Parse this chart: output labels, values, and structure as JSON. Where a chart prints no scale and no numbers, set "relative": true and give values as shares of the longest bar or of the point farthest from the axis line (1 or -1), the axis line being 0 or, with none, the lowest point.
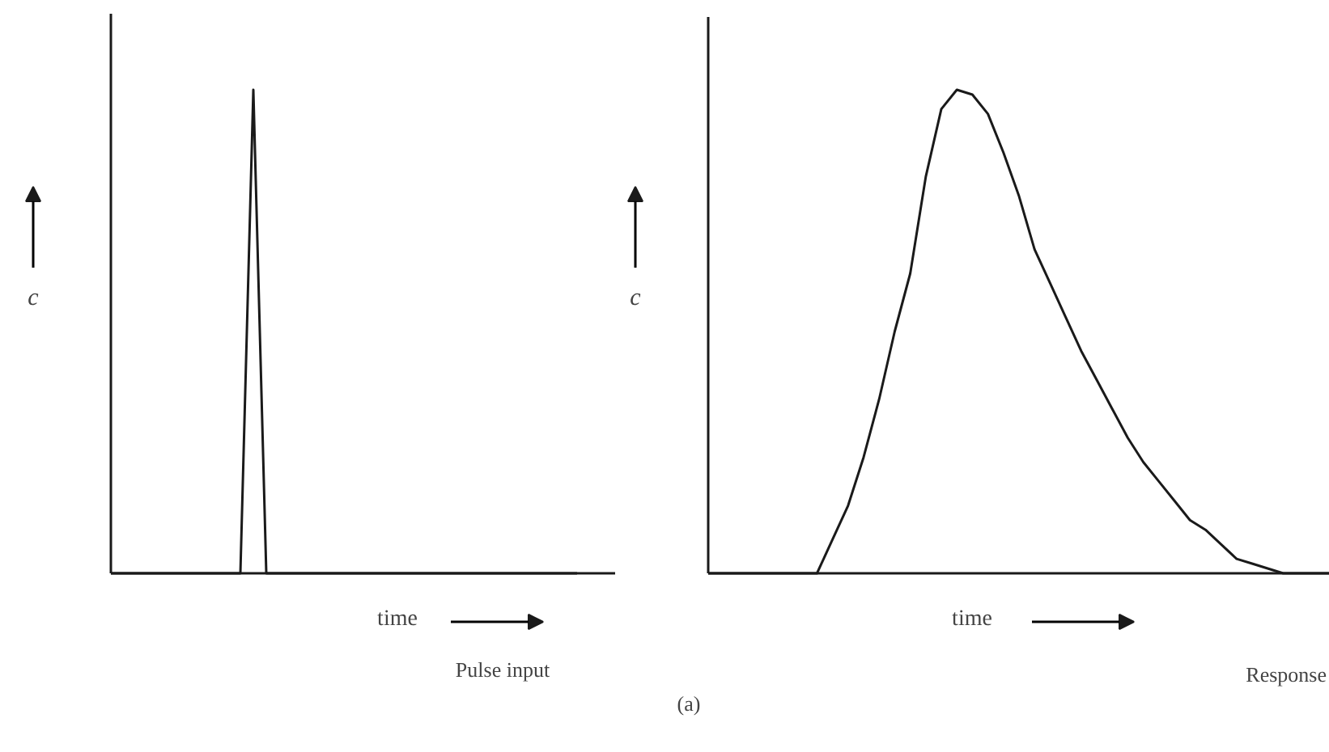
{
  "chart_data": [
    {
      "type": "line",
      "relative": true,
      "xlabel": "time",
      "ylabel": "c",
      "annotations": [
        "Pulse input"
      ],
      "color": "#1a1a1a",
      "categories": [
        null,
        null,
        null,
        null,
        null,
        null,
        null,
        null,
        null,
        null,
        null,
        null,
        null,
        null,
        null,
        null,
        null,
        null,
        null,
        null,
        null,
        null,
        null,
        null,
        null,
        null,
        null,
        null,
        null,
        null,
        null,
        null,
        null,
        null,
        null,
        null,
        null
      ],
      "values": [
        0,
        0,
        0,
        0,
        0,
        0,
        0,
        0,
        0,
        0,
        0,
        1,
        0,
        0,
        0,
        0,
        0,
        0,
        0,
        0,
        0,
        0,
        0,
        0,
        0,
        0,
        0,
        0,
        0,
        0,
        0,
        0,
        0,
        0,
        0,
        0,
        0
      ]
    },
    {
      "type": "line",
      "relative": true,
      "xlabel": "time",
      "ylabel": "c",
      "annotations": [
        "Response",
        "(a)"
      ],
      "color": "#1a1a1a",
      "categories": [
        null,
        null,
        null,
        null,
        null,
        null,
        null,
        null,
        null,
        null,
        null,
        null,
        null,
        null,
        null,
        null,
        null,
        null,
        null,
        null,
        null,
        null,
        null,
        null,
        null,
        null,
        null,
        null,
        null,
        null,
        null,
        null,
        null,
        null,
        null,
        null,
        null,
        null,
        null,
        null,
        null
      ],
      "values": [
        0,
        0,
        0,
        0,
        0,
        0,
        0,
        0,
        0.07,
        0.14,
        0.24,
        0.36,
        0.5,
        0.62,
        0.82,
        0.96,
        1,
        0.99,
        0.95,
        0.87,
        0.78,
        0.67,
        0.6,
        0.53,
        0.46,
        0.4,
        0.34,
        0.28,
        0.23,
        0.19,
        0.15,
        0.11,
        0.09,
        0.06,
        0.03,
        0.02,
        0.01,
        0,
        0,
        0,
        0
      ]
    }
  ]
}
